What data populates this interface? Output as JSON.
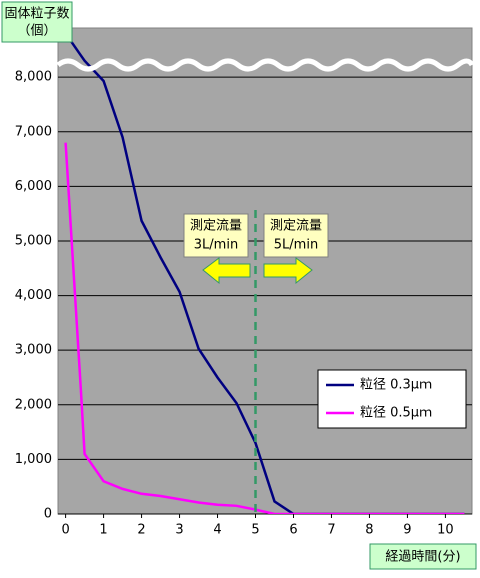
{
  "chart_data": {
    "type": "line",
    "ylabel": [
      "固体粒子数",
      "（個）"
    ],
    "xlabel": "経過時間(分)",
    "x": [
      0,
      0.4,
      0.5,
      1,
      1.5,
      2,
      2.5,
      3,
      3.5,
      4,
      4.5,
      5,
      5.5,
      6,
      6.5,
      7,
      7.5,
      8,
      8.5,
      9,
      9.5,
      10,
      10.5
    ],
    "series": [
      {
        "name": "粒径 0.3μｍ",
        "color": "#000080",
        "values": [
          8800,
          8400,
          8300,
          7930,
          6900,
          5370,
          4700,
          4070,
          3030,
          2500,
          2030,
          1300,
          230,
          0,
          0,
          0,
          0,
          0,
          0,
          0,
          0,
          0,
          0
        ]
      },
      {
        "name": "粒径 0.5μｍ",
        "color": "#ff00ff",
        "values": [
          6800,
          2300,
          1100,
          600,
          460,
          370,
          330,
          270,
          210,
          170,
          150,
          80,
          0,
          0,
          0,
          0,
          0,
          0,
          0,
          0,
          0,
          0,
          0
        ]
      }
    ],
    "xlim": [
      -0.2,
      10.7
    ],
    "ylim": [
      0,
      8900
    ],
    "xticks": [
      0,
      1,
      2,
      3,
      4,
      5,
      6,
      7,
      8,
      9,
      10
    ],
    "yticks": [
      0,
      {
        "value": 1000,
        "label": "1,000"
      },
      {
        "value": 2000,
        "label": "2,000"
      },
      {
        "value": 3000,
        "label": "3,000"
      },
      {
        "value": 4000,
        "label": "4,000"
      },
      {
        "value": 5000,
        "label": "5,000"
      },
      {
        "value": 6000,
        "label": "6,000"
      },
      {
        "value": 7000,
        "label": "7,000"
      },
      {
        "value": 8000,
        "label": "8,000"
      }
    ],
    "grid": true,
    "vline": 5,
    "annotations": [
      [
        "測定流量",
        "3L/min"
      ],
      [
        "測定流量",
        "5L/min"
      ]
    ]
  }
}
